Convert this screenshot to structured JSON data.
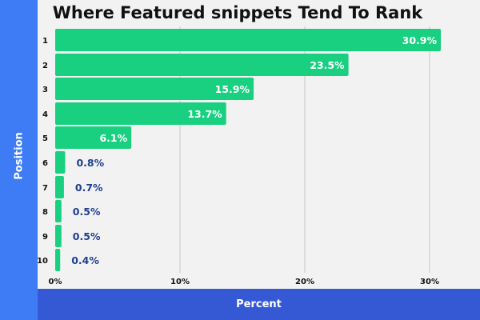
{
  "chart_data": {
    "type": "bar",
    "orientation": "horizontal",
    "title": "Where Featured snippets Tend To Rank",
    "xlabel": "Percent",
    "ylabel": "Position",
    "categories": [
      "1",
      "2",
      "3",
      "4",
      "5",
      "6",
      "7",
      "8",
      "9",
      "10"
    ],
    "values": [
      30.9,
      23.5,
      15.9,
      13.7,
      6.1,
      0.8,
      0.7,
      0.5,
      0.5,
      0.4
    ],
    "value_labels": [
      "30.9%",
      "23.5%",
      "15.9%",
      "13.7%",
      "6.1%",
      "0.8%",
      "0.7%",
      "0.5%",
      "0.5%",
      "0.4%"
    ],
    "x_ticks": [
      0,
      10,
      20,
      30
    ],
    "x_tick_labels": [
      "0%",
      "10%",
      "20%",
      "30%"
    ],
    "xlim": [
      0,
      32.5
    ],
    "grid": true,
    "legend": "none"
  },
  "colors": {
    "bar": "#19cf80",
    "inside_label": "#ffffff",
    "outside_label": "#1f3f8f",
    "grid": "#c8c8c8",
    "left_band": "#3d7cf5",
    "bottom_band": "#3559d4"
  }
}
